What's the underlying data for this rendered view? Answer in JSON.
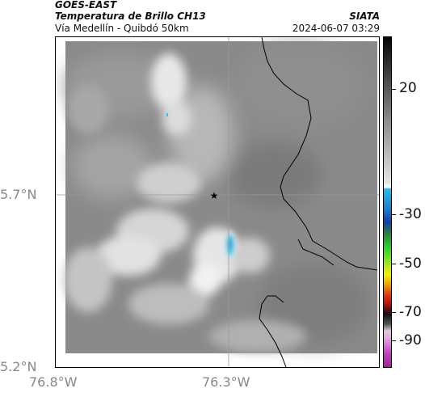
{
  "header": {
    "satellite": "GOES-EAST",
    "product": "Temperatura de Brillo CH13",
    "agency": "SIATA",
    "region": "Vía Medellín - Quibdó 50km",
    "datetime": "2024-06-07 03:29"
  },
  "axes": {
    "lat_ticks": [
      "5.7°N",
      "5.2°N"
    ],
    "lon_ticks": [
      "76.8°W",
      "76.3°W"
    ]
  },
  "colorbar": {
    "labels": [
      "20",
      "-30",
      "-50",
      "-70",
      "-90"
    ],
    "colors": {
      "gray_light": "#d8d8d8",
      "gray_dark": "#3a3a3a",
      "cyan": "#22c0e8",
      "blue": "#1a3ab0",
      "green": "#2bd62b",
      "yellow": "#f0f000",
      "red": "#e83a10",
      "black": "#111111",
      "magenta": "#c040c0"
    }
  },
  "map": {
    "marker": "star-icon",
    "land_color": "#8c8c8c",
    "cloud_color": "#e6e6e6",
    "cold_top_color": "#2fc4e6"
  }
}
